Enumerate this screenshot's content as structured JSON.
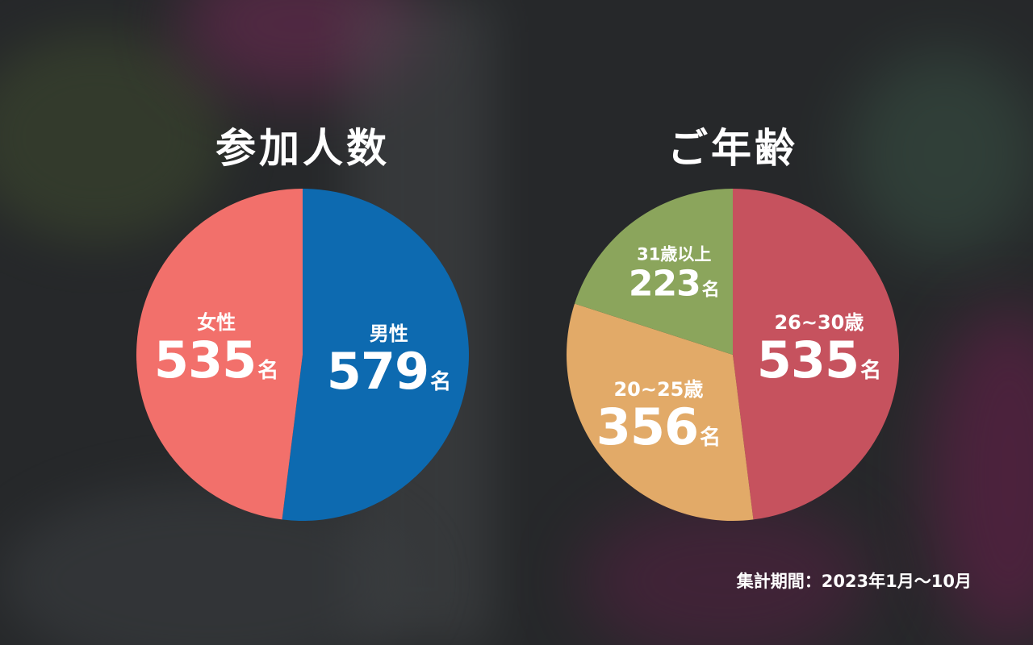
{
  "chart_data": [
    {
      "type": "pie",
      "title": "参加人数",
      "slices": [
        {
          "label": "男性",
          "value": 579,
          "unit": "名",
          "color": "#0d6ab0"
        },
        {
          "label": "女性",
          "value": 535,
          "unit": "名",
          "color": "#f2706b"
        }
      ]
    },
    {
      "type": "pie",
      "title": "ご年齢",
      "slices": [
        {
          "label": "26~30歳",
          "value": 535,
          "unit": "名",
          "color": "#c6525e"
        },
        {
          "label": "20~25歳",
          "value": 356,
          "unit": "名",
          "color": "#e2aa68"
        },
        {
          "label": "31歳以上",
          "value": 223,
          "unit": "名",
          "color": "#8ba55c"
        }
      ]
    }
  ],
  "footer": {
    "period": "集計期間：2023年1月〜10月"
  }
}
